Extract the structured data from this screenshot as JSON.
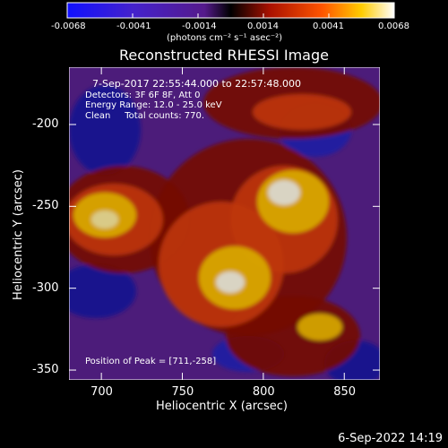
{
  "colorbar": {
    "ticks": [
      "-0.0068",
      "-0.0041",
      "-0.0014",
      "0.0014",
      "0.0041",
      "0.0068"
    ],
    "unit_label": "(photons cm⁻² s⁻¹ asec⁻²)"
  },
  "image": {
    "title": "Reconstructed RHESSI Image",
    "info_lines": [
      "7-Sep-2017 22:55:44.000 to 22:57:48.000",
      "Detectors: 3F 6F 8F, Att 0",
      "Energy Range: 12.0 - 25.0 keV",
      "Clean     Total counts: 770."
    ],
    "peak_text": "Position of Peak = [711,-258]",
    "x_ticks": [
      "700",
      "750",
      "800",
      "850"
    ],
    "y_ticks": [
      "-200",
      "-250",
      "-300",
      "-350"
    ],
    "x_label": "Heliocentric X (arcsec)",
    "y_label": "Heliocentric Y (arcsec)",
    "x_range": [
      680,
      872
    ],
    "y_range": [
      -356,
      -165
    ]
  },
  "footer": {
    "timestamp": "6-Sep-2022 14:19"
  }
}
